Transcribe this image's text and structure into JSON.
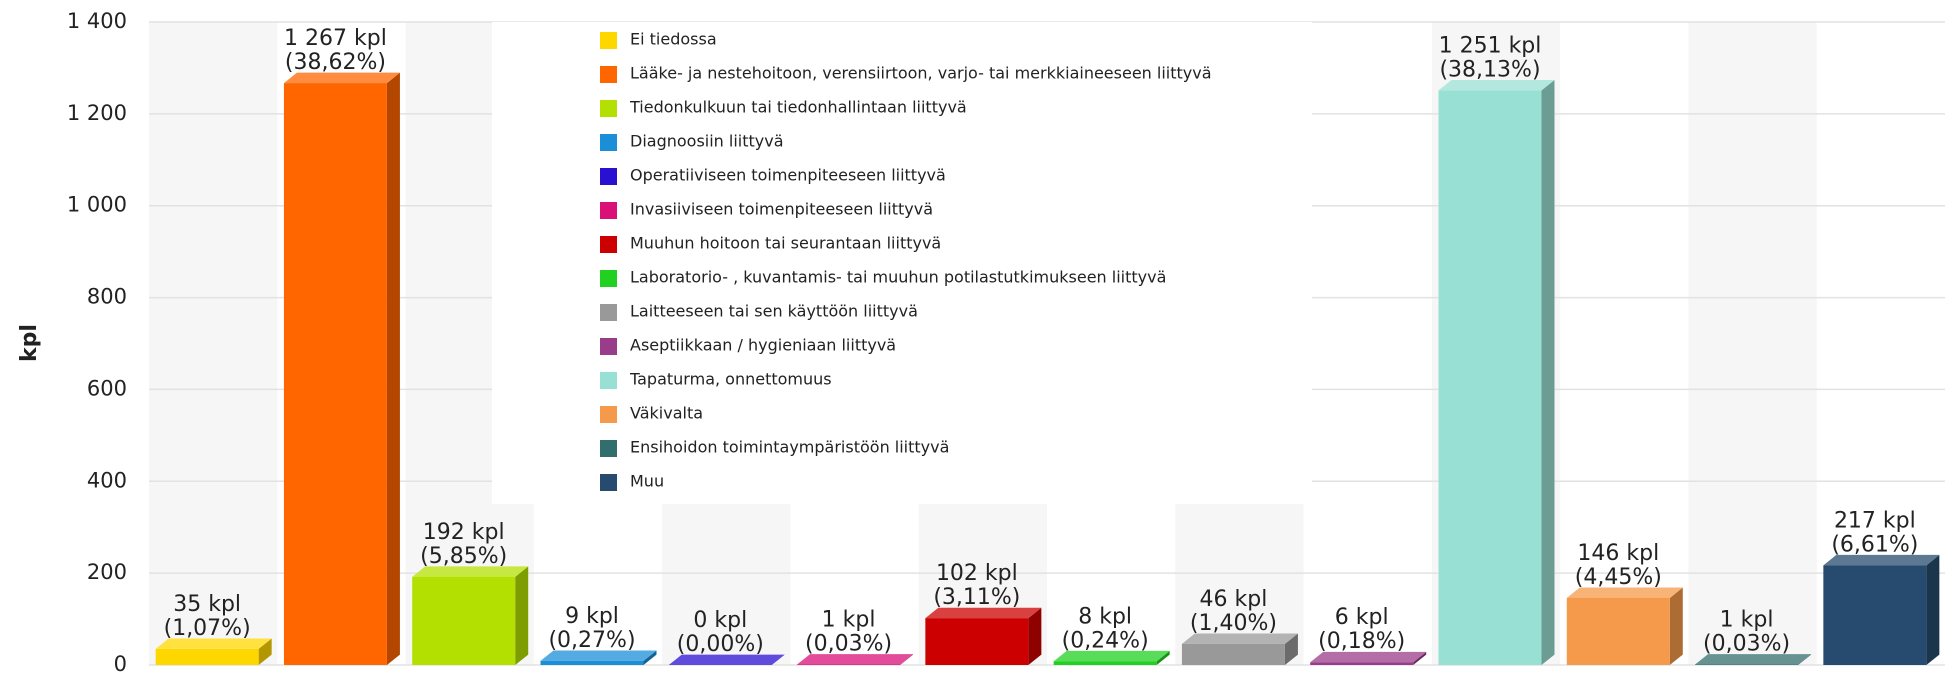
{
  "chart_data": {
    "type": "bar",
    "y_label": "kpl",
    "categories": [
      "Ei tiedossa",
      "Lääke- ja nestehoitoon, verensiirtoon, varjo- tai merkkiaineeseen liittyvä",
      "Tiedonkulkuun tai tiedonhallintaan liittyvä",
      "Diagnoosiin liittyvä",
      "Operatiiviseen toimenpiteeseen liittyvä",
      "Invasiiviseen toimenpiteeseen liittyvä",
      "Muuhun hoitoon tai seurantaan liittyvä",
      "Laboratorio- , kuvantamis- tai muuhun potilastutkimukseen liittyvä",
      "Laitteeseen tai sen käyttöön liittyvä",
      "Aseptiikkaan / hygieniaan liittyvä",
      "Tapaturma, onnettomuus",
      "Väkivalta",
      "Ensihoidon toimintaympäristöön liittyvä",
      "Muu"
    ],
    "values": [
      35,
      1267,
      192,
      9,
      0,
      1,
      102,
      8,
      46,
      6,
      1251,
      146,
      1,
      217
    ],
    "value_labels": [
      "35 kpl",
      "1 267 kpl",
      "192 kpl",
      "9 kpl",
      "0 kpl",
      "1 kpl",
      "102 kpl",
      "8 kpl",
      "46 kpl",
      "6 kpl",
      "1 251 kpl",
      "146 kpl",
      "1 kpl",
      "217 kpl"
    ],
    "share_labels": [
      "(1,07%)",
      "(38,62%)",
      "(5,85%)",
      "(0,27%)",
      "(0,00%)",
      "(0,03%)",
      "(3,11%)",
      "(0,24%)",
      "(1,40%)",
      "(0,18%)",
      "(38,13%)",
      "(4,45%)",
      "(0,03%)",
      "(6,61%)"
    ],
    "colors": [
      "#ffd700",
      "#ff6600",
      "#b3e000",
      "#1a8fd8",
      "#2a10d0",
      "#d81078",
      "#cc0000",
      "#22d022",
      "#999999",
      "#993d8a",
      "#99e0d4",
      "#f59a4a",
      "#336e6e",
      "#264b6e"
    ],
    "ylim": [
      0,
      1400
    ],
    "yticks": [
      0,
      200,
      400,
      600,
      800,
      {
        "value": 1000,
        "label": "1 000"
      },
      {
        "value": 1200,
        "label": "1 200"
      },
      {
        "value": 1400,
        "label": "1 400"
      }
    ],
    "grid": true
  }
}
